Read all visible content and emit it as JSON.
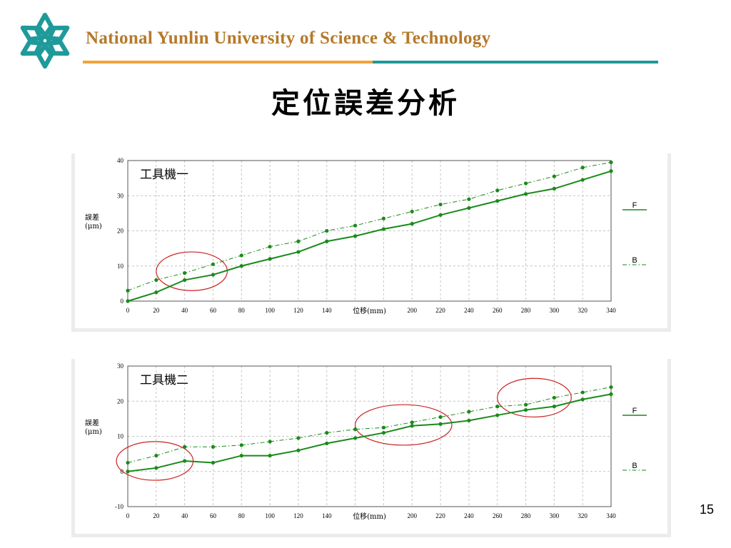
{
  "header": {
    "university_name": "National Yunlin University of Science & Technology",
    "logo_icon": "snowflake-logo-icon",
    "colors": {
      "brand_teal": "#1f9a9a",
      "brand_orange": "#f2a33a",
      "name_text": "#b5792a"
    }
  },
  "slide": {
    "title": "定位誤差分析",
    "page_number": "15"
  },
  "chart_data": [
    {
      "type": "line",
      "annotation": "工具機一",
      "xlabel": "位移(mm)",
      "ylabel": "誤差\n(μm)",
      "xlim": [
        0,
        340
      ],
      "ylim": [
        0,
        40
      ],
      "x_ticks": [
        0,
        20,
        40,
        60,
        80,
        100,
        120,
        140,
        200,
        220,
        240,
        260,
        280,
        300,
        320,
        340
      ],
      "y_ticks": [
        0,
        10,
        20,
        30,
        40
      ],
      "grid": true,
      "legend_position": "right",
      "x": [
        0,
        20,
        40,
        60,
        80,
        100,
        120,
        140,
        160,
        180,
        200,
        220,
        240,
        260,
        280,
        300,
        320,
        340
      ],
      "series": [
        {
          "name": "F",
          "style": "solid",
          "color": "#1a8a1a",
          "values": [
            0,
            2.5,
            6,
            7.5,
            10,
            12,
            14,
            17,
            18.5,
            20.5,
            22,
            24.5,
            26.5,
            28.5,
            30.5,
            32,
            34.5,
            37
          ]
        },
        {
          "name": "B",
          "style": "dash-dot",
          "color": "#1a8a1a",
          "values": [
            3,
            6,
            8,
            10.5,
            13,
            15.5,
            17,
            20,
            21.5,
            23.5,
            25.5,
            27.5,
            29,
            31.5,
            33.5,
            35.5,
            38,
            39.5
          ]
        }
      ],
      "highlight_regions": [
        {
          "x_range": [
            20,
            70
          ],
          "y_range": [
            3,
            14
          ]
        }
      ]
    },
    {
      "type": "line",
      "annotation": "工具機二",
      "xlabel": "位移(mm)",
      "ylabel": "誤差\n(μm)",
      "xlim": [
        0,
        340
      ],
      "ylim": [
        -10,
        30
      ],
      "x_ticks": [
        0,
        20,
        40,
        60,
        80,
        100,
        120,
        140,
        200,
        220,
        240,
        260,
        280,
        300,
        320,
        340
      ],
      "y_ticks": [
        -10,
        0,
        10,
        20,
        30
      ],
      "grid": true,
      "legend_position": "right",
      "x": [
        0,
        20,
        40,
        60,
        80,
        100,
        120,
        140,
        160,
        180,
        200,
        220,
        240,
        260,
        280,
        300,
        320,
        340
      ],
      "series": [
        {
          "name": "F",
          "style": "solid",
          "color": "#1a8a1a",
          "values": [
            0,
            1,
            3,
            2.5,
            4.5,
            4.5,
            6,
            8,
            9.5,
            11,
            13,
            13.5,
            14.5,
            16,
            17.5,
            18.5,
            20.5,
            22
          ]
        },
        {
          "name": "B",
          "style": "dash-dot",
          "color": "#1a8a1a",
          "values": [
            2.5,
            4.5,
            7,
            7,
            7.5,
            8.5,
            9.5,
            11,
            12,
            12.5,
            14,
            15.5,
            17,
            18.5,
            19,
            21,
            22.5,
            24
          ]
        }
      ],
      "highlight_regions": [
        {
          "x_range": [
            -8,
            46
          ],
          "y_range": [
            -2.5,
            8.5
          ]
        },
        {
          "x_range": [
            160,
            228
          ],
          "y_range": [
            7.5,
            19
          ]
        },
        {
          "x_range": [
            260,
            312
          ],
          "y_range": [
            15.5,
            26.5
          ]
        }
      ]
    }
  ]
}
